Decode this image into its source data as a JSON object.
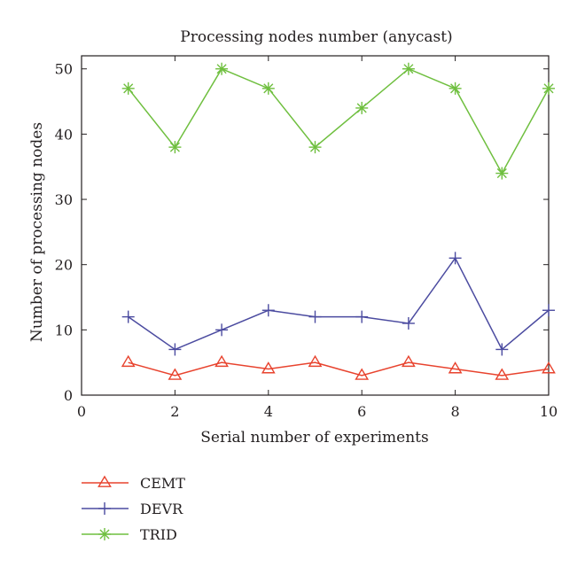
{
  "chart_data": {
    "type": "line",
    "title": "Processing nodes number (anycast)",
    "xlabel": "Serial number of experiments",
    "ylabel": "Number of processing nodes",
    "xlim": [
      0,
      10
    ],
    "ylim": [
      0,
      52
    ],
    "xticks": [
      0,
      2,
      4,
      6,
      8,
      10
    ],
    "yticks": [
      0,
      10,
      20,
      30,
      40,
      50
    ],
    "grid": false,
    "legend_position": "below-left",
    "x": [
      1,
      2,
      3,
      4,
      5,
      6,
      7,
      8,
      9,
      10
    ],
    "series": [
      {
        "name": "CEMT",
        "color": "#e8432e",
        "marker": "triangle",
        "values": [
          5,
          3,
          5,
          4,
          5,
          3,
          5,
          4,
          3,
          4
        ]
      },
      {
        "name": "DEVR",
        "color": "#4b4ba0",
        "marker": "plus",
        "values": [
          12,
          7,
          10,
          13,
          12,
          12,
          11,
          21,
          7,
          13
        ]
      },
      {
        "name": "TRID",
        "color": "#6fbf3f",
        "marker": "asterisk",
        "values": [
          47,
          38,
          50,
          47,
          38,
          44,
          50,
          47,
          34,
          47
        ]
      }
    ]
  }
}
